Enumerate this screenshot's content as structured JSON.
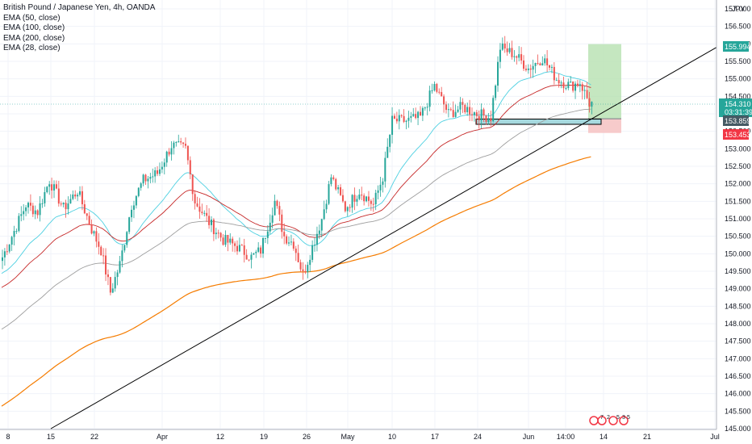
{
  "legend": {
    "title": "British Pound / Japanese Yen, 4h, OANDA",
    "ema50": "EMA (50, close)",
    "ema100": "EMA (100, close)",
    "ema200": "EMA (200, close)",
    "ema28": "EMA (28, close)"
  },
  "currency": "JPY",
  "colors": {
    "up": "#26a69a",
    "down": "#ef5350",
    "ema28": "#4dd0e1",
    "ema50": "#c62828",
    "ema100": "#9e9e9e",
    "ema200": "#f57c00",
    "trendline": "#000000",
    "target": "#b7e1b0",
    "stop": "#f6c5c5",
    "zone": "#a6d9de"
  },
  "badges": {
    "target": "155.994",
    "last": "154.310",
    "countdown": "03:31:39",
    "entry": "153.859",
    "stop": "153.453"
  },
  "chart_data": {
    "type": "candlestick",
    "title": "British Pound / Japanese Yen, 4h, OANDA",
    "xlabel": "",
    "ylabel": "JPY",
    "ylim": [
      145.0,
      157.0
    ],
    "grid": true,
    "y_ticks": [
      "157.000",
      "156.500",
      "156.000",
      "155.500",
      "155.000",
      "154.500",
      "154.000",
      "153.500",
      "153.000",
      "152.500",
      "152.000",
      "151.500",
      "151.000",
      "150.500",
      "150.000",
      "149.500",
      "149.000",
      "148.500",
      "148.000",
      "147.500",
      "147.000",
      "146.500",
      "146.000",
      "145.500",
      "145.000"
    ],
    "x_ticks": [
      "8",
      "15",
      "22",
      "Apr",
      "12",
      "19",
      "26",
      "May",
      "10",
      "17",
      "24",
      "Jun",
      "14:00",
      "14",
      "21",
      "Jul"
    ],
    "anchors": [
      {
        "i": 0,
        "p": 149.9
      },
      {
        "i": 10,
        "p": 151.4
      },
      {
        "i": 15,
        "p": 151.2
      },
      {
        "i": 20,
        "p": 152.1
      },
      {
        "i": 26,
        "p": 151.3
      },
      {
        "i": 32,
        "p": 151.8
      },
      {
        "i": 38,
        "p": 150.7
      },
      {
        "i": 42,
        "p": 150.1
      },
      {
        "i": 46,
        "p": 148.9
      },
      {
        "i": 50,
        "p": 149.7
      },
      {
        "i": 55,
        "p": 151.4
      },
      {
        "i": 60,
        "p": 152.1
      },
      {
        "i": 66,
        "p": 152.3
      },
      {
        "i": 72,
        "p": 153.1
      },
      {
        "i": 78,
        "p": 153.0
      },
      {
        "i": 82,
        "p": 151.5
      },
      {
        "i": 88,
        "p": 150.9
      },
      {
        "i": 94,
        "p": 150.4
      },
      {
        "i": 100,
        "p": 150.2
      },
      {
        "i": 106,
        "p": 149.9
      },
      {
        "i": 110,
        "p": 150.1
      },
      {
        "i": 116,
        "p": 151.5
      },
      {
        "i": 120,
        "p": 150.5
      },
      {
        "i": 124,
        "p": 150.3
      },
      {
        "i": 128,
        "p": 149.4
      },
      {
        "i": 132,
        "p": 150.2
      },
      {
        "i": 136,
        "p": 151.0
      },
      {
        "i": 140,
        "p": 152.2
      },
      {
        "i": 146,
        "p": 151.3
      },
      {
        "i": 152,
        "p": 151.8
      },
      {
        "i": 158,
        "p": 151.4
      },
      {
        "i": 162,
        "p": 152.2
      },
      {
        "i": 166,
        "p": 153.8
      },
      {
        "i": 172,
        "p": 153.8
      },
      {
        "i": 178,
        "p": 153.9
      },
      {
        "i": 184,
        "p": 154.8
      },
      {
        "i": 190,
        "p": 154.0
      },
      {
        "i": 196,
        "p": 154.2
      },
      {
        "i": 202,
        "p": 154.0
      },
      {
        "i": 208,
        "p": 153.9
      },
      {
        "i": 212,
        "p": 155.9
      },
      {
        "i": 218,
        "p": 155.7
      },
      {
        "i": 224,
        "p": 155.3
      },
      {
        "i": 230,
        "p": 155.6
      },
      {
        "i": 236,
        "p": 155.0
      },
      {
        "i": 242,
        "p": 154.8
      },
      {
        "i": 246,
        "p": 154.9
      },
      {
        "i": 250,
        "p": 154.3
      }
    ],
    "trendline": {
      "from": {
        "date": "15",
        "price": 145.0
      },
      "to": {
        "date": "Jun 21",
        "price": 155.9
      }
    },
    "position": {
      "target": 155.994,
      "entry": 153.859,
      "stop": 153.453
    },
    "support_zone": [
      153.7,
      153.85
    ],
    "last_price": 154.31
  },
  "bottom_icons": [
    "7",
    "2",
    "5",
    "3",
    "5"
  ]
}
